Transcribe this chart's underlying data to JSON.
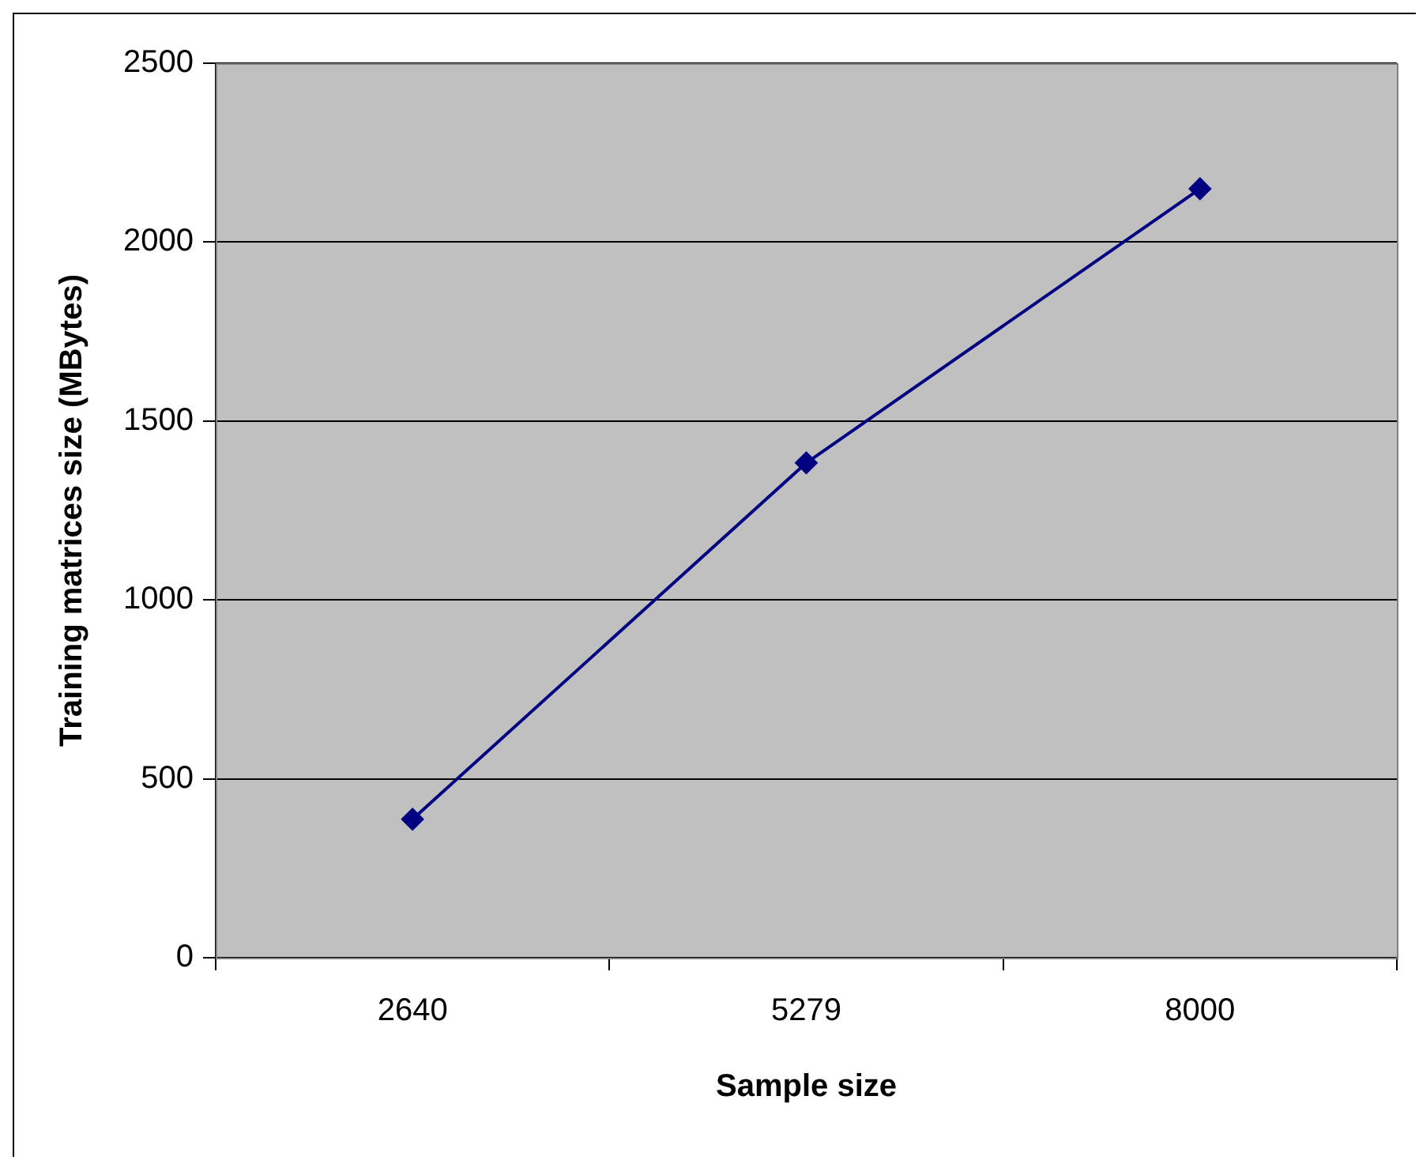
{
  "chart_data": {
    "type": "line",
    "xlabel": "Sample size",
    "ylabel": "Training matrices size (MBytes)",
    "categories": [
      "2640",
      "5279",
      "8000"
    ],
    "series": [
      {
        "color": "#000080",
        "values": [
          387,
          1383,
          2149
        ]
      }
    ],
    "ylim": [
      0,
      2500
    ],
    "yticks": [
      0,
      500,
      1000,
      1500,
      2000,
      2500
    ],
    "grid": "y",
    "legend": false,
    "marker": "diamond",
    "line_style": "solid"
  }
}
